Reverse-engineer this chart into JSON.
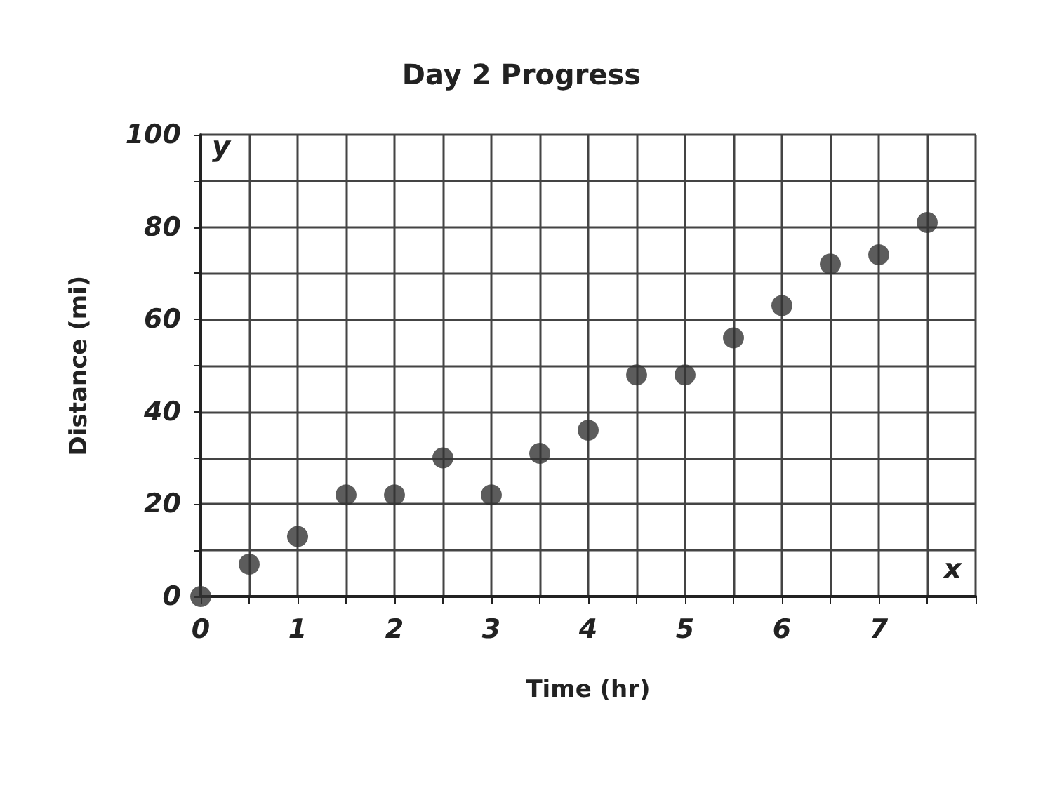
{
  "chart_data": {
    "type": "scatter",
    "title": "Day 2 Progress",
    "xlabel": "Time (hr)",
    "ylabel": "Distance (mi)",
    "x": [
      0,
      0.5,
      1,
      1.5,
      2,
      2.5,
      3,
      3.5,
      4,
      4.5,
      5,
      5.5,
      6,
      6.5,
      7,
      7.5
    ],
    "series": [
      {
        "color": "#333333",
        "values": [
          0,
          7,
          13,
          22,
          22,
          30,
          22,
          31,
          36,
          48,
          48,
          56,
          63,
          72,
          74,
          81
        ]
      }
    ],
    "xlim": [
      0,
      8
    ],
    "xticks": [
      0,
      {
        "value": 0.5,
        "label": null
      },
      1,
      {
        "value": 1.5,
        "label": null
      },
      2,
      {
        "value": 2.5,
        "label": null
      },
      3,
      {
        "value": 3.5,
        "label": null
      },
      4,
      {
        "value": 4.5,
        "label": null
      },
      5,
      {
        "value": 5.5,
        "label": null
      },
      6,
      {
        "value": 6.5,
        "label": null
      },
      7,
      {
        "value": 7.5,
        "label": null
      },
      {
        "value": 8,
        "label": null
      }
    ],
    "ylim": [
      0,
      100
    ],
    "yticks": [
      0,
      {
        "value": 10,
        "label": null
      },
      20,
      {
        "value": 30,
        "label": null
      },
      40,
      {
        "value": 50,
        "label": null
      },
      60,
      {
        "value": 70,
        "label": null
      },
      80,
      {
        "value": 90,
        "label": null
      },
      100
    ],
    "annotations": [
      "y",
      "x"
    ],
    "grid": true,
    "marker": "circle"
  }
}
